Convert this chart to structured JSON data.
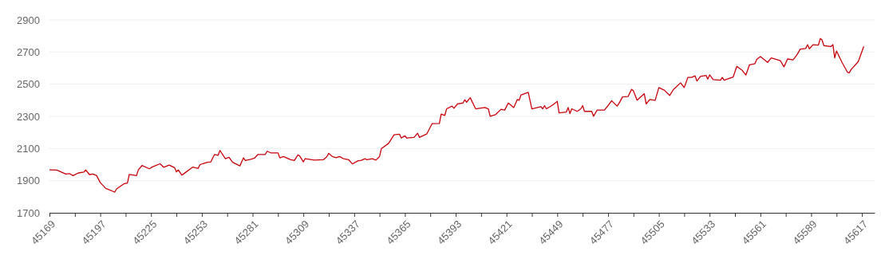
{
  "chart_data": {
    "type": "line",
    "color": "#c8000a",
    "grid": "y",
    "marker": "none",
    "line_style": "solid",
    "xlim": [
      45169,
      45624
    ],
    "ylim": [
      1700,
      2900
    ],
    "yticks": [
      1700,
      1900,
      2100,
      2300,
      2500,
      2700,
      2900
    ],
    "xticks": [
      45169,
      {
        "value": 45183,
        "label": null
      },
      45197,
      {
        "value": 45211,
        "label": null
      },
      45225,
      {
        "value": 45239,
        "label": null
      },
      45253,
      {
        "value": 45267,
        "label": null
      },
      45281,
      {
        "value": 45295,
        "label": null
      },
      45309,
      {
        "value": 45323,
        "label": null
      },
      45337,
      {
        "value": 45351,
        "label": null
      },
      45365,
      {
        "value": 45379,
        "label": null
      },
      45393,
      {
        "value": 45407,
        "label": null
      },
      45421,
      {
        "value": 45435,
        "label": null
      },
      45449,
      {
        "value": 45463,
        "label": null
      },
      45477,
      {
        "value": 45491,
        "label": null
      },
      45505,
      {
        "value": 45519,
        "label": null
      },
      45533,
      {
        "value": 45547,
        "label": null
      },
      45561,
      {
        "value": 45575,
        "label": null
      },
      45589,
      {
        "value": 45603,
        "label": null
      },
      45617
    ],
    "x": [
      45169,
      45173,
      45176,
      45178,
      45180,
      45182,
      45185,
      45188,
      45189,
      45191,
      45193,
      45195,
      45197,
      45200,
      45205,
      45206,
      45210,
      45212,
      45213,
      45217,
      45218,
      45220,
      45224,
      45226,
      45230,
      45232,
      45235,
      45238,
      45239,
      45240,
      45242,
      45244,
      45248,
      45251,
      45252,
      45256,
      45258,
      45260,
      45262,
      45263,
      45266,
      45268,
      45270,
      45274,
      45276,
      45277,
      45280,
      45282,
      45284,
      45288,
      45289,
      45291,
      45295,
      45296,
      45298,
      45302,
      45304,
      45306,
      45307,
      45309,
      45310,
      45315,
      45320,
      45322,
      45323,
      45325,
      45327,
      45329,
      45331,
      45334,
      45336,
      45339,
      45341,
      45343,
      45344,
      45347,
      45349,
      45351,
      45352,
      45356,
      45359,
      45362,
      45363,
      45365,
      45366,
      45370,
      45372,
      45373,
      45377,
      45380,
      45384,
      45385,
      45387,
      45388,
      45391,
      45392,
      45394,
      45397,
      45398,
      45399,
      45401,
      45404,
      45409,
      45411,
      45412,
      45415,
      45418,
      45420,
      45422,
      45425,
      45427,
      45428,
      45429,
      45433,
      45435,
      45440,
      45441,
      45442,
      45443,
      45446,
      45449,
      45450,
      45454,
      45455,
      45456,
      45457,
      45460,
      45462,
      45463,
      45464,
      45468,
      45469,
      45471,
      45475,
      45477,
      45479,
      45482,
      45483,
      45485,
      45488,
      45490,
      45491,
      45493,
      45497,
      45498,
      45500,
      45503,
      45505,
      45508,
      45511,
      45513,
      45517,
      45519,
      45521,
      45523,
      45525,
      45526,
      45528,
      45531,
      45532,
      45533,
      45535,
      45539,
      45540,
      45541,
      45546,
      45548,
      45551,
      45553,
      45555,
      45558,
      45559,
      45561,
      45565,
      45567,
      45572,
      45574,
      45576,
      45579,
      45581,
      45583,
      45586,
      45587,
      45588,
      45590,
      45593,
      45594,
      45595,
      45596,
      45600,
      45601,
      45602,
      45603,
      45606,
      45609,
      45610,
      45611,
      45615,
      45618
    ],
    "values": [
      1967,
      1966,
      1951,
      1941,
      1944,
      1931,
      1948,
      1954,
      1967,
      1938,
      1941,
      1931,
      1888,
      1852,
      1829,
      1849,
      1880,
      1885,
      1939,
      1931,
      1967,
      1994,
      1974,
      1987,
      2005,
      1983,
      1997,
      1981,
      1954,
      1967,
      1934,
      1951,
      1984,
      1976,
      2000,
      2014,
      2017,
      2063,
      2058,
      2088,
      2037,
      2045,
      2014,
      1992,
      2042,
      2025,
      2033,
      2040,
      2063,
      2063,
      2083,
      2073,
      2073,
      2042,
      2050,
      2030,
      2025,
      2060,
      2053,
      2017,
      2037,
      2028,
      2030,
      2050,
      2070,
      2050,
      2043,
      2050,
      2037,
      2030,
      2004,
      2023,
      2027,
      2037,
      2030,
      2037,
      2028,
      2050,
      2099,
      2132,
      2185,
      2189,
      2165,
      2179,
      2165,
      2169,
      2195,
      2169,
      2190,
      2255,
      2256,
      2314,
      2306,
      2347,
      2364,
      2350,
      2377,
      2383,
      2403,
      2388,
      2416,
      2347,
      2355,
      2347,
      2301,
      2311,
      2344,
      2339,
      2383,
      2355,
      2405,
      2400,
      2433,
      2449,
      2347,
      2360,
      2347,
      2367,
      2347,
      2367,
      2393,
      2322,
      2327,
      2355,
      2317,
      2347,
      2331,
      2347,
      2367,
      2331,
      2331,
      2301,
      2339,
      2339,
      2367,
      2397,
      2364,
      2380,
      2421,
      2423,
      2468,
      2459,
      2400,
      2441,
      2377,
      2405,
      2400,
      2479,
      2463,
      2430,
      2466,
      2509,
      2479,
      2542,
      2542,
      2552,
      2520,
      2549,
      2555,
      2532,
      2558,
      2529,
      2525,
      2542,
      2525,
      2545,
      2611,
      2586,
      2557,
      2621,
      2628,
      2654,
      2672,
      2636,
      2664,
      2647,
      2608,
      2657,
      2651,
      2680,
      2718,
      2722,
      2746,
      2720,
      2746,
      2743,
      2784,
      2776,
      2740,
      2735,
      2746,
      2664,
      2707,
      2636,
      2575,
      2571,
      2591,
      2641,
      2735
    ]
  }
}
